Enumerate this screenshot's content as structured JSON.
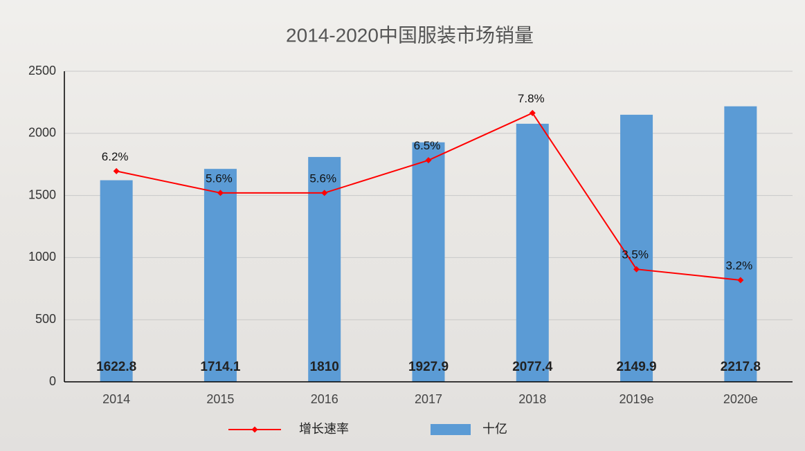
{
  "chart_data": {
    "type": "bar",
    "title": "2014-2020中国服装市场销量",
    "categories": [
      "2014",
      "2015",
      "2016",
      "2017",
      "2018",
      "2019e",
      "2020e"
    ],
    "series": [
      {
        "name": "增长速率",
        "type": "line",
        "color": "#ff0000",
        "axis": "y2",
        "values": [
          6.2,
          5.6,
          5.6,
          6.5,
          7.8,
          3.5,
          3.2
        ],
        "value_labels": [
          "6.2%",
          "5.6%",
          "5.6%",
          "6.5%",
          "7.8%",
          "3.5%",
          "3.2%"
        ]
      },
      {
        "name": "十亿",
        "type": "bar",
        "color": "#5b9bd5",
        "values": [
          1622.8,
          1714.1,
          1810,
          1927.9,
          2077.4,
          2149.9,
          2217.8
        ]
      }
    ],
    "ylim": [
      0,
      2500
    ],
    "yticks": [
      0,
      500,
      1000,
      1500,
      2000,
      2500
    ],
    "y2lim": [
      0.4,
      8.95
    ],
    "grid": true,
    "legend": "bottom"
  }
}
